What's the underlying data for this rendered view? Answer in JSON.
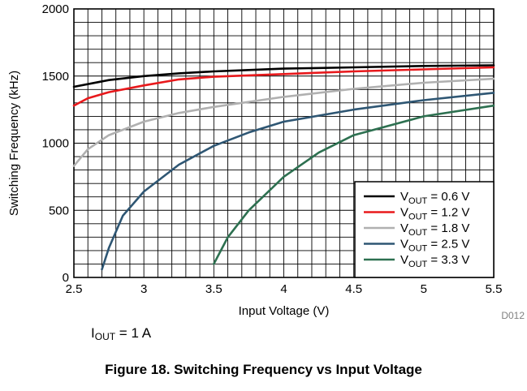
{
  "chart_data": {
    "type": "line",
    "title": "",
    "xlabel": "Input Voltage (V)",
    "ylabel": "Switching Frequency (kHz)",
    "xlim": [
      2.5,
      5.5
    ],
    "ylim": [
      0,
      2000
    ],
    "x_ticks": [
      "2.5",
      "3",
      "3.5",
      "4",
      "4.5",
      "5",
      "5.5"
    ],
    "y_ticks": [
      "0",
      "500",
      "1000",
      "1500",
      "2000"
    ],
    "grid": true,
    "legend_position": "bottom-right",
    "series": [
      {
        "name": "V_OUT = 0.6 V",
        "label_main": "V",
        "label_sub": "OUT",
        "label_rest": " = 0.6 V",
        "color": "#000000",
        "x": [
          2.5,
          2.75,
          3.0,
          3.25,
          3.5,
          3.75,
          4.0,
          4.5,
          5.0,
          5.5
        ],
        "y": [
          1420,
          1470,
          1500,
          1520,
          1535,
          1545,
          1555,
          1565,
          1575,
          1580
        ]
      },
      {
        "name": "V_OUT = 1.2 V",
        "label_main": "V",
        "label_sub": "OUT",
        "label_rest": " = 1.2 V",
        "color": "#e8191c",
        "x": [
          2.5,
          2.6,
          2.75,
          3.0,
          3.25,
          3.5,
          4.0,
          4.5,
          5.0,
          5.5
        ],
        "y": [
          1280,
          1335,
          1380,
          1430,
          1475,
          1495,
          1515,
          1535,
          1550,
          1565
        ]
      },
      {
        "name": "V_OUT = 1.8 V",
        "label_main": "V",
        "label_sub": "OUT",
        "label_rest": " = 1.8 V",
        "color": "#b0b0b0",
        "x": [
          2.5,
          2.6,
          2.75,
          3.0,
          3.25,
          3.5,
          4.0,
          4.5,
          5.0,
          5.5
        ],
        "y": [
          830,
          955,
          1060,
          1160,
          1225,
          1270,
          1345,
          1405,
          1450,
          1480
        ]
      },
      {
        "name": "V_OUT = 2.5 V",
        "label_main": "V",
        "label_sub": "OUT",
        "label_rest": " = 2.5 V",
        "color": "#2e5673",
        "x": [
          2.7,
          2.75,
          2.85,
          3.0,
          3.25,
          3.5,
          3.75,
          4.0,
          4.5,
          5.0,
          5.5
        ],
        "y": [
          60,
          220,
          460,
          640,
          840,
          980,
          1080,
          1160,
          1250,
          1320,
          1375
        ]
      },
      {
        "name": "V_OUT = 3.3 V",
        "label_main": "V",
        "label_sub": "OUT",
        "label_rest": " = 3.3 V",
        "color": "#2d7050",
        "x": [
          3.5,
          3.6,
          3.75,
          4.0,
          4.25,
          4.5,
          5.0,
          5.5
        ],
        "y": [
          100,
          300,
          500,
          750,
          930,
          1060,
          1200,
          1280
        ]
      }
    ]
  },
  "figure_code": "D012",
  "condition_note": {
    "main": "I",
    "sub": "OUT",
    "rest": " = 1 A"
  },
  "caption": "Figure 18. Switching Frequency vs Input Voltage"
}
